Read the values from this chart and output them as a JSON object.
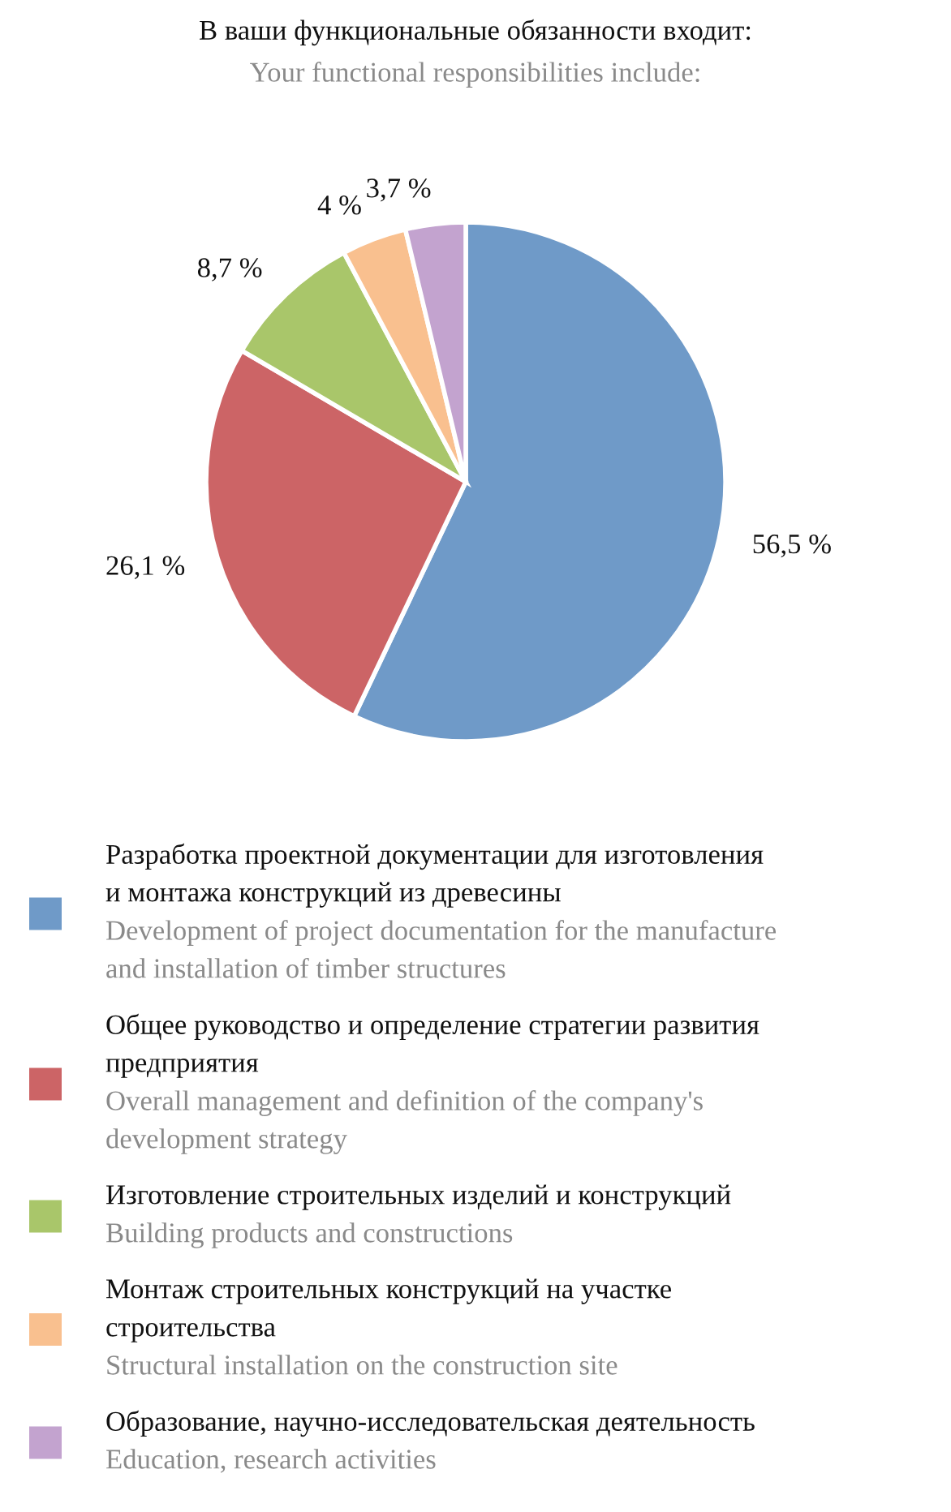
{
  "chart_data": {
    "type": "pie",
    "title": "В ваши функциональные обязанности входит:",
    "subtitle": "Your functional responsibilities include:",
    "categories": [
      "Разработка проектной документации для изготовления\nи монтажа конструкций из древесины\n\nDevelopment of project documentation for the manufacture\nand installation of timber structures",
      "Общее руководство и определение стратегии развития\nпредприятия\n\nOverall management and definition of the company's\ndevelopment strategy",
      "Изготовление строительных изделий и конструкций\n\nBuilding products and constructions",
      "Монтаж строительных конструкций на участке\nстроительства\n\nStructural installation on the construction site",
      "Образование, научно-исследовательская деятельность\n\nEducation, research activities"
    ],
    "values": [
      56.5,
      26.1,
      8.7,
      4,
      3.7
    ],
    "value_labels": [
      "56,5 %",
      "26,1 %",
      "8,7 %",
      "4 %",
      "3,7 %"
    ],
    "colors": [
      "#6f9ac8",
      "#cc6466",
      "#a9c66a",
      "#f9c08f",
      "#c3a3cf"
    ],
    "legend": "bottom"
  }
}
